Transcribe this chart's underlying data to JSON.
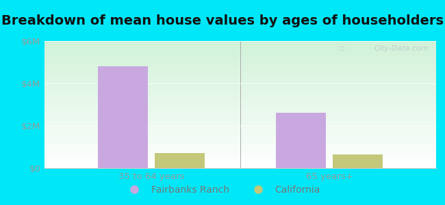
{
  "title": "Breakdown of mean house values by ages of householders",
  "categories": [
    "35 to 64 years",
    "65 years+"
  ],
  "fairbanks_values": [
    4800000,
    2600000
  ],
  "california_values": [
    700000,
    650000
  ],
  "ylim": [
    0,
    6000000
  ],
  "yticks": [
    0,
    2000000,
    4000000,
    6000000
  ],
  "ytick_labels": [
    "$0",
    "$2M",
    "$4M",
    "$6M"
  ],
  "bar_color_fairbanks": "#c9a8e0",
  "bar_color_california": "#c4c87a",
  "background_outer": "#00e8f8",
  "legend_fairbanks": "Fairbanks Ranch",
  "legend_california": "California",
  "watermark": "City-Data.com",
  "bar_width": 0.28,
  "title_fontsize": 14,
  "tick_fontsize": 9.5,
  "legend_fontsize": 10
}
